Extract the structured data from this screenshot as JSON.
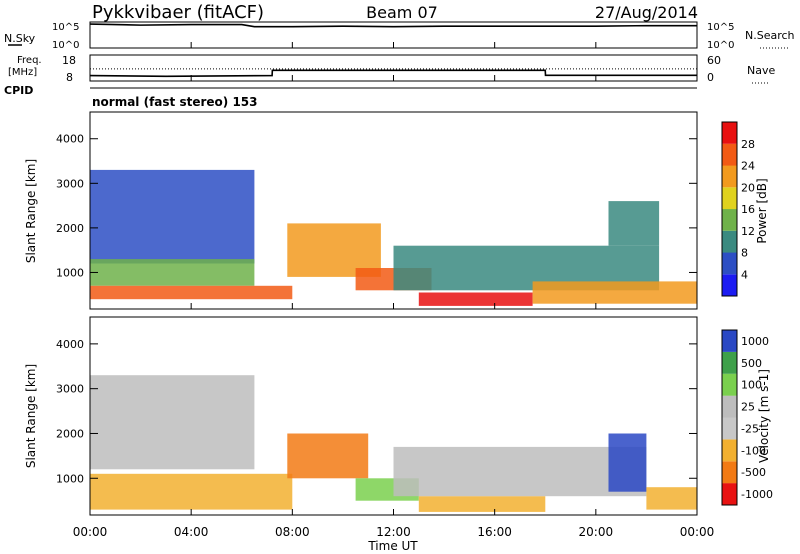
{
  "header": {
    "radar": "Pykkvibaer (fitACF)",
    "beam": "Beam 07",
    "date": "27/Aug/2014"
  },
  "top_panels": {
    "nsky_label": "N.Sky",
    "nsearch_label": "N.Search",
    "nsky_ticks": [
      "10^5",
      "10^0"
    ],
    "nsearch_ticks": [
      "10^5",
      "10^0"
    ],
    "freq_label": "Freq.",
    "freq_unit": "[MHz]",
    "freq_ticks": [
      "18",
      "8"
    ],
    "nave_label": "Nave",
    "nave_ticks": [
      "60",
      "0"
    ],
    "cpid_label": "CPID",
    "cpid_text": "normal (fast stereo) 153"
  },
  "axis_common": {
    "x_ticks": [
      "00:00",
      "04:00",
      "08:00",
      "12:00",
      "16:00",
      "20:00",
      "00:00"
    ],
    "xlabel": "Time UT",
    "ylabel": "Slant Range [km]",
    "y_ticks": [
      "1000",
      "2000",
      "3000",
      "4000"
    ]
  },
  "power_scale": {
    "label": "Power [dB]",
    "ticks": [
      "4",
      "8",
      "12",
      "16",
      "20",
      "24",
      "28"
    ],
    "colors": [
      "#1c1cf2",
      "#2d4fc4",
      "#3a8a80",
      "#6fb24a",
      "#e0d21e",
      "#f29a1e",
      "#f25a14",
      "#e81010"
    ]
  },
  "velocity_scale": {
    "label": "Velocity [m s-1]",
    "ticks": [
      "1000",
      "500",
      "100",
      "25",
      "-25",
      "-100",
      "-500",
      "-1000"
    ],
    "colors": [
      "#2a48c4",
      "#3ea04a",
      "#7ad04e",
      "#bdbdbd",
      "#c8c8c8",
      "#f2b030",
      "#f27a14",
      "#e81212"
    ]
  },
  "chart_data": [
    {
      "type": "line",
      "title": "N.Sky / N.Search",
      "x": [
        0,
        2,
        4,
        6,
        6.5,
        8,
        10,
        12,
        14,
        16,
        18,
        20,
        22,
        24
      ],
      "series": [
        {
          "name": "N.Sky",
          "values": [
            4.6,
            4.4,
            4.5,
            4.5,
            4.1,
            4.1,
            4.2,
            4.1,
            4.2,
            4.2,
            4.2,
            4.2,
            4.3,
            4.3
          ]
        }
      ],
      "ylim": [
        0,
        5
      ],
      "xlim": [
        0,
        24
      ]
    },
    {
      "type": "line",
      "title": "Freq / Nave",
      "x": [
        0,
        3,
        7.2,
        7.21,
        18,
        18.01,
        24
      ],
      "series": [
        {
          "name": "Freq",
          "values": [
            10.1,
            9.8,
            10.1,
            12.1,
            12.1,
            10.2,
            10.2
          ]
        },
        {
          "name": "Nave",
          "values": [
            28,
            28,
            28,
            28,
            28,
            28,
            28
          ]
        }
      ],
      "ylim": [
        8,
        18
      ],
      "xlim": [
        0,
        24
      ]
    },
    {
      "type": "heatmap",
      "title": "Power",
      "x_unit": "hours UT",
      "y_unit": "km",
      "xlim": [
        0,
        24
      ],
      "ylim": [
        180,
        4600
      ],
      "regions": [
        {
          "t0": 0.0,
          "t1": 6.5,
          "r0": 1200,
          "r1": 3300,
          "v": 7
        },
        {
          "t0": 0.0,
          "t1": 6.5,
          "r0": 700,
          "r1": 1300,
          "v": 15
        },
        {
          "t0": 0.0,
          "t1": 8.0,
          "r0": 400,
          "r1": 700,
          "v": 24
        },
        {
          "t0": 7.8,
          "t1": 11.5,
          "r0": 900,
          "r1": 2100,
          "v": 22
        },
        {
          "t0": 10.5,
          "t1": 13.5,
          "r0": 600,
          "r1": 1100,
          "v": 25
        },
        {
          "t0": 13.0,
          "t1": 17.5,
          "r0": 250,
          "r1": 550,
          "v": 30
        },
        {
          "t0": 12.0,
          "t1": 22.5,
          "r0": 600,
          "r1": 1600,
          "v": 8
        },
        {
          "t0": 17.5,
          "t1": 24.0,
          "r0": 300,
          "r1": 800,
          "v": 21
        },
        {
          "t0": 20.5,
          "t1": 22.5,
          "r0": 1600,
          "r1": 2600,
          "v": 10
        }
      ]
    },
    {
      "type": "heatmap",
      "title": "Velocity",
      "x_unit": "hours UT",
      "y_unit": "km",
      "xlim": [
        0,
        24
      ],
      "ylim": [
        180,
        4600
      ],
      "regions": [
        {
          "t0": 0.0,
          "t1": 6.5,
          "r0": 1200,
          "r1": 3300,
          "v": 0
        },
        {
          "t0": 0.0,
          "t1": 8.0,
          "r0": 300,
          "r1": 1100,
          "v": -300
        },
        {
          "t0": 7.8,
          "t1": 11.0,
          "r0": 1000,
          "r1": 2000,
          "v": -700
        },
        {
          "t0": 10.5,
          "t1": 13.0,
          "r0": 500,
          "r1": 1000,
          "v": 150
        },
        {
          "t0": 13.0,
          "t1": 18.0,
          "r0": 250,
          "r1": 600,
          "v": -200
        },
        {
          "t0": 12.0,
          "t1": 22.0,
          "r0": 600,
          "r1": 1700,
          "v": 0
        },
        {
          "t0": 20.5,
          "t1": 22.0,
          "r0": 700,
          "r1": 2000,
          "v": 900
        },
        {
          "t0": 22.0,
          "t1": 24.0,
          "r0": 300,
          "r1": 800,
          "v": -200
        }
      ]
    }
  ]
}
